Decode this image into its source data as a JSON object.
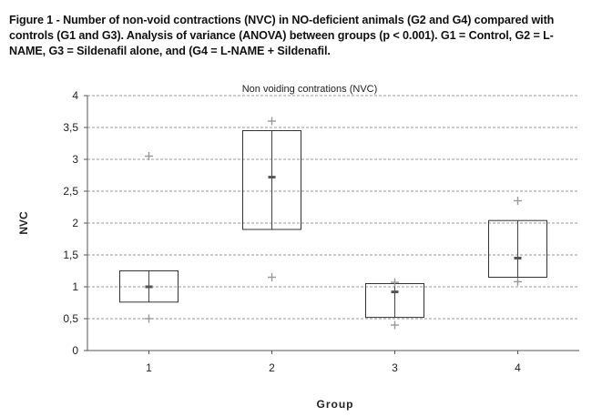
{
  "caption": "Figure 1 - Number of non-void contractions (NVC) in NO-deficient animals (G2 and G4) compared with controls (G1 and G3). Analysis of variance (ANOVA) between groups (p < 0.001). G1 = Control, G2 = L-NAME, G3 = Sildenafil alone, and (G4 = L-NAME + Sildenafil.",
  "chart_data": {
    "type": "box",
    "title": "Non voiding contrations (NVC)",
    "xlabel": "Group",
    "ylabel": "NVC",
    "ylim": [
      0,
      4
    ],
    "yticks": [
      "0",
      "0,5",
      "1",
      "1,5",
      "2",
      "2,5",
      "3",
      "3,5",
      "4"
    ],
    "ytick_values": [
      0,
      0.5,
      1,
      1.5,
      2,
      2.5,
      3,
      3.5,
      4
    ],
    "categories": [
      "1",
      "2",
      "3",
      "4"
    ],
    "grid": true,
    "boxes": [
      {
        "group": "1",
        "q1": 0.76,
        "median": 1.0,
        "q3": 1.25,
        "min": 0.5,
        "max": 3.05
      },
      {
        "group": "2",
        "q1": 1.9,
        "median": 2.72,
        "q3": 3.45,
        "min": 1.15,
        "max": 3.6
      },
      {
        "group": "3",
        "q1": 0.52,
        "median": 0.92,
        "q3": 1.05,
        "min": 0.4,
        "max": 1.07
      },
      {
        "group": "4",
        "q1": 1.15,
        "median": 1.45,
        "q3": 2.04,
        "min": 1.08,
        "max": 2.35
      }
    ]
  }
}
